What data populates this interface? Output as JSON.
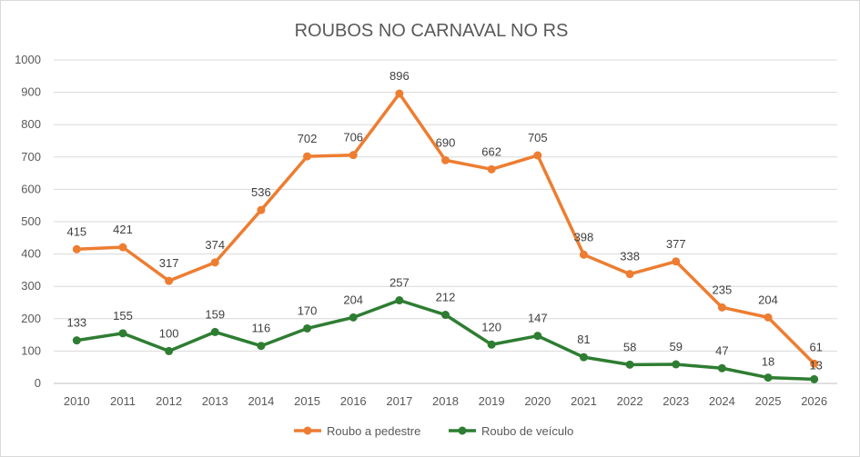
{
  "chart_data": {
    "type": "line",
    "title": "ROUBOS NO CARNAVAL NO RS",
    "xlabel": "",
    "ylabel": "",
    "categories": [
      "2010",
      "2011",
      "2012",
      "2013",
      "2014",
      "2015",
      "2016",
      "2017",
      "2018",
      "2019",
      "2020",
      "2021",
      "2022",
      "2023",
      "2024",
      "2025",
      "2026"
    ],
    "ylim": [
      0,
      1000
    ],
    "yticks": [
      "0",
      "100",
      "200",
      "300",
      "400",
      "500",
      "600",
      "700",
      "800",
      "900",
      "1000"
    ],
    "grid": "horizontal",
    "legend_position": "bottom",
    "series": [
      {
        "name": "Roubo a pedestre",
        "color": "#ED7D31",
        "values": [
          415,
          421,
          317,
          374,
          536,
          702,
          706,
          896,
          690,
          662,
          705,
          398,
          338,
          377,
          235,
          204,
          61
        ]
      },
      {
        "name": "Roubo de veículo",
        "color": "#2E7D32",
        "values": [
          133,
          155,
          100,
          159,
          116,
          170,
          204,
          257,
          212,
          120,
          147,
          81,
          58,
          59,
          47,
          18,
          13
        ]
      }
    ]
  }
}
